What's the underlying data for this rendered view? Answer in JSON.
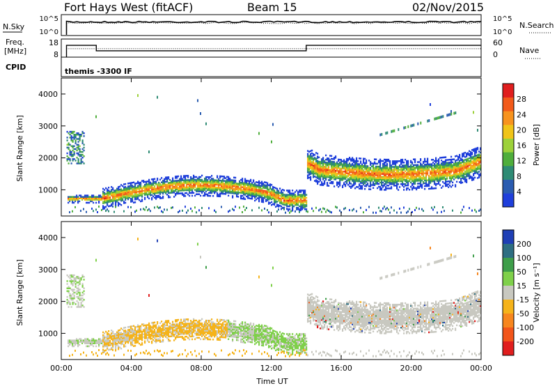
{
  "header": {
    "station": "Fort Hays West (fitACF)",
    "beam": "Beam 15",
    "date": "02/Nov/2015"
  },
  "panels": {
    "noise": {
      "left_label": "N.Sky",
      "right_label": "N.Search",
      "left_ticks": [
        "10^5",
        "10^0"
      ],
      "right_ticks": [
        "10^5",
        "10^0"
      ],
      "sky_level": 0.35,
      "search_level": 0.4
    },
    "freq": {
      "left_label_1": "Freq.",
      "left_label_2": "[MHz]",
      "right_label": "Nave",
      "left_ticks": [
        "18",
        "8"
      ],
      "right_ticks": [
        "60",
        "0"
      ],
      "cpid_label": "CPID",
      "cpid_text": "themis -3300 IF",
      "freq_steps": [
        {
          "start": 0.3,
          "end": 2.0,
          "mhz": 14.5
        },
        {
          "start": 2.0,
          "end": 14.0,
          "mhz": 11.5
        },
        {
          "start": 14.0,
          "end": 24.0,
          "mhz": 14.5
        }
      ],
      "nave_level": 28
    }
  },
  "chart_data": [
    {
      "type": "heatmap",
      "name": "power",
      "ylabel": "Slant Range [km]",
      "ylim": [
        180,
        4500
      ],
      "yticks": [
        "1000",
        "2000",
        "3000",
        "4000"
      ],
      "colorbar_label": "Power [dB]",
      "colorbar_levels": [
        "4",
        "8",
        "12",
        "16",
        "20",
        "24",
        "28"
      ],
      "colorbar_colors": [
        "#1f3fdb",
        "#2a5cb0",
        "#2e8b74",
        "#4fae3c",
        "#9dd13a",
        "#f0c418",
        "#f7931e",
        "#f25a1a",
        "#e01e1e"
      ]
    },
    {
      "type": "heatmap",
      "name": "velocity",
      "ylabel": "Slant Range [km]",
      "xlabel": "Time UT",
      "ylim": [
        180,
        4500
      ],
      "yticks": [
        "1000",
        "2000",
        "3000",
        "4000"
      ],
      "xticks": [
        "00:00",
        "04:00",
        "08:00",
        "12:00",
        "16:00",
        "20:00",
        "00:00"
      ],
      "colorbar_label": "Velocity [m s⁻¹]",
      "colorbar_levels": [
        "200",
        "100",
        "50",
        "15",
        "-15",
        "-50",
        "-100",
        "-200"
      ],
      "colorbar_colors": [
        "#1f3fb5",
        "#2e6e82",
        "#3e9e4a",
        "#7fd04a",
        "#c8c8c0",
        "#f5b31a",
        "#f7861e",
        "#f2551a",
        "#e01e1e"
      ]
    }
  ]
}
